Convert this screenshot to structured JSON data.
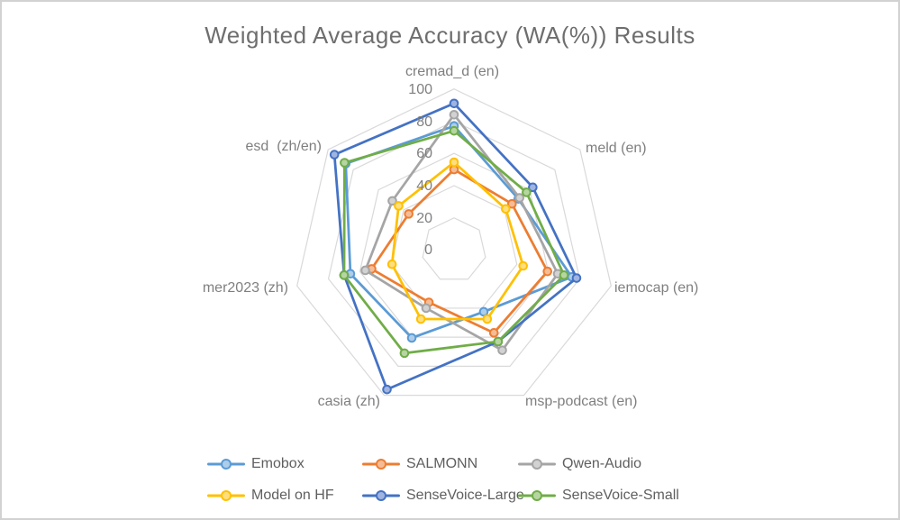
{
  "chart_data": {
    "type": "radar",
    "title": "Weighted Average Accuracy (WA(%)) Results",
    "categories": [
      "cremad_d (en)",
      "meld (en)",
      "iemocap (en)",
      "msp-podcast (en)",
      "casia (zh)",
      "mer2023 (zh)",
      "esd  (zh/en)"
    ],
    "tick_labels": [
      "0",
      "20",
      "40",
      "60",
      "80",
      "100"
    ],
    "axis_range": [
      0,
      100
    ],
    "grid_interval": 20,
    "grid_on": true,
    "grid_color": "#D9D9D9",
    "legend_position": "bottom",
    "series": [
      {
        "name": "Emobox",
        "color": "#5B9BD5",
        "marker_fill": "#AECDEA",
        "values": [
          77,
          51,
          75,
          42.5,
          60.5,
          66,
          86
        ]
      },
      {
        "name": "SALMONN",
        "color": "#ED7D31",
        "marker_fill": "#F5BD97",
        "values": [
          50,
          46,
          59.5,
          57,
          36,
          52.5,
          36
        ]
      },
      {
        "name": "Qwen-Audio",
        "color": "#A5A5A5",
        "marker_fill": "#D2D2D2",
        "values": [
          84,
          52,
          66,
          69,
          40,
          56.5,
          49
        ]
      },
      {
        "name": "Model on HF",
        "color": "#FFC000",
        "marker_fill": "#FFDE7F",
        "values": [
          54.5,
          41,
          44,
          47.5,
          47.5,
          39.5,
          44
        ]
      },
      {
        "name": "SenseVoice-Large",
        "color": "#4472C4",
        "marker_fill": "#A0B4E0",
        "values": [
          91,
          62.5,
          78,
          63,
          96,
          70,
          95
        ]
      },
      {
        "name": "SenseVoice-Small",
        "color": "#70AD47",
        "marker_fill": "#B6D5A2",
        "values": [
          74,
          57.5,
          70,
          63,
          71,
          70,
          87
        ]
      }
    ]
  }
}
